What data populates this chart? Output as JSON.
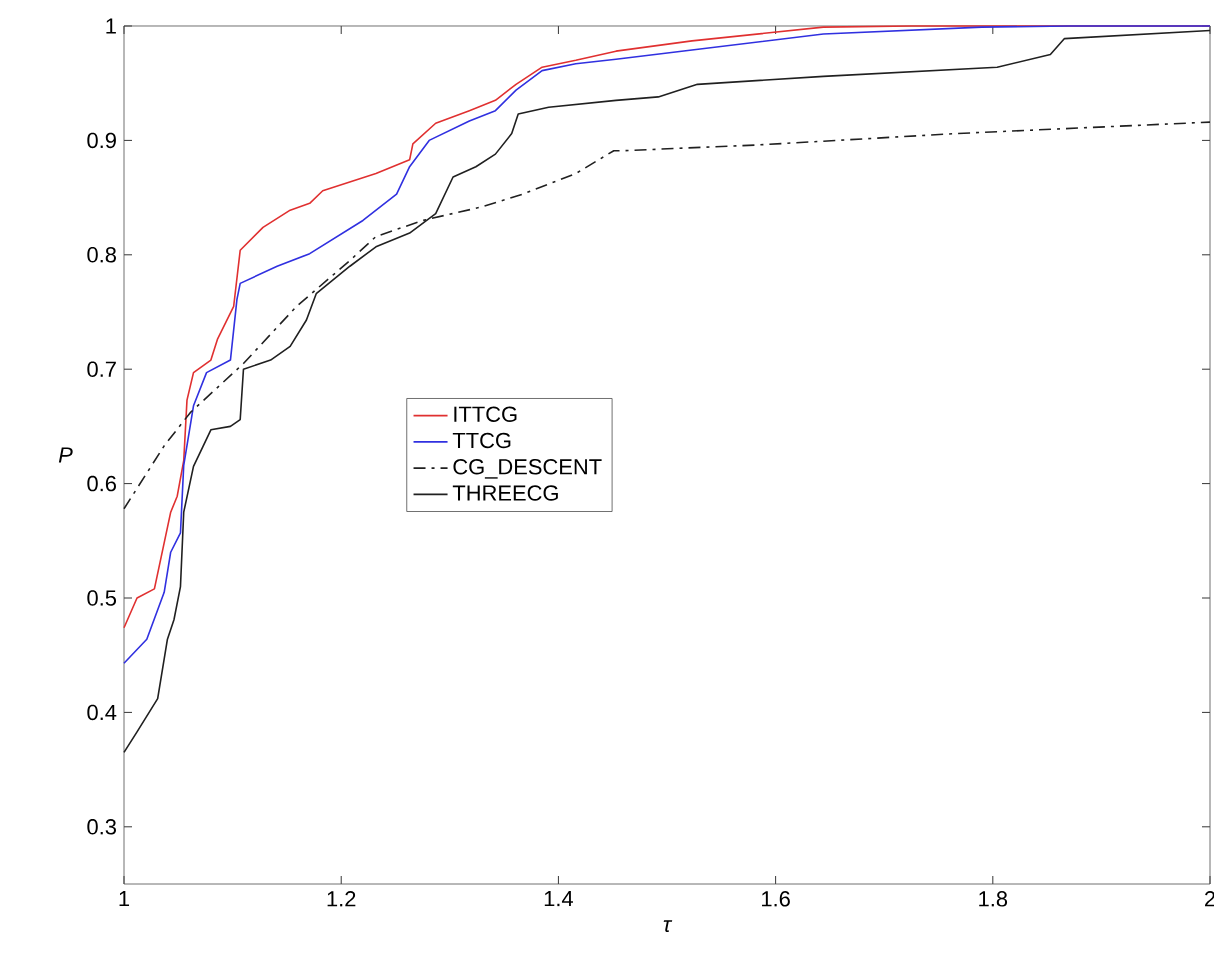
{
  "chart_data": {
    "type": "line",
    "xlabel": "τ",
    "ylabel": "P",
    "xlim": [
      1,
      2
    ],
    "ylim": [
      0.25,
      1
    ],
    "xticks": [
      1,
      1.2,
      1.4,
      1.6,
      1.8,
      2
    ],
    "yticks": [
      0.3,
      0.4,
      0.5,
      0.6,
      0.7,
      0.8,
      0.9,
      1
    ],
    "legend": "left",
    "grid": false,
    "marker": "none",
    "series": [
      {
        "name": "ITTCG",
        "color": "#e03030",
        "line_style": "solid",
        "x": [
          1.0,
          1.012,
          1.028,
          1.043,
          1.049,
          1.055,
          1.058,
          1.064,
          1.08,
          1.086,
          1.101,
          1.107,
          1.128,
          1.153,
          1.171,
          1.183,
          1.232,
          1.263,
          1.266,
          1.287,
          1.318,
          1.342,
          1.361,
          1.385,
          1.416,
          1.453,
          1.523,
          1.644,
          1.725,
          2.0
        ],
        "values": [
          0.474,
          0.5,
          0.508,
          0.575,
          0.589,
          0.62,
          0.673,
          0.697,
          0.708,
          0.726,
          0.755,
          0.804,
          0.824,
          0.839,
          0.845,
          0.856,
          0.871,
          0.883,
          0.897,
          0.915,
          0.926,
          0.935,
          0.949,
          0.964,
          0.97,
          0.978,
          0.987,
          0.999,
          1.0,
          1.0
        ]
      },
      {
        "name": "TTCG",
        "color": "#3030e0",
        "line_style": "solid",
        "x": [
          1.0,
          1.021,
          1.037,
          1.043,
          1.052,
          1.055,
          1.064,
          1.076,
          1.098,
          1.104,
          1.107,
          1.141,
          1.171,
          1.22,
          1.251,
          1.263,
          1.281,
          1.318,
          1.342,
          1.361,
          1.385,
          1.416,
          1.453,
          1.523,
          1.644,
          1.79,
          1.87,
          2.0
        ],
        "values": [
          0.443,
          0.464,
          0.505,
          0.54,
          0.557,
          0.616,
          0.668,
          0.697,
          0.708,
          0.761,
          0.775,
          0.79,
          0.801,
          0.83,
          0.853,
          0.877,
          0.9,
          0.917,
          0.926,
          0.944,
          0.961,
          0.967,
          0.971,
          0.979,
          0.993,
          0.999,
          1.0,
          1.0
        ]
      },
      {
        "name": "CG_DESCENT",
        "color": "#202020",
        "line_style": "dashdot",
        "x": [
          1.0,
          1.037,
          1.061,
          1.11,
          1.159,
          1.208,
          1.232,
          1.275,
          1.33,
          1.367,
          1.416,
          1.451,
          1.46,
          1.583,
          1.767,
          2.0
        ],
        "values": [
          0.578,
          0.633,
          0.662,
          0.705,
          0.755,
          0.795,
          0.816,
          0.83,
          0.842,
          0.853,
          0.871,
          0.891,
          0.891,
          0.896,
          0.906,
          0.916
        ]
      },
      {
        "name": "THREECG",
        "color": "#202020",
        "line_style": "solid",
        "x": [
          1.0,
          1.012,
          1.031,
          1.04,
          1.046,
          1.052,
          1.055,
          1.064,
          1.073,
          1.08,
          1.098,
          1.107,
          1.11,
          1.135,
          1.153,
          1.168,
          1.177,
          1.208,
          1.232,
          1.263,
          1.287,
          1.303,
          1.324,
          1.342,
          1.357,
          1.363,
          1.391,
          1.453,
          1.492,
          1.528,
          1.644,
          1.804,
          1.853,
          1.866,
          2.0
        ],
        "values": [
          0.365,
          0.383,
          0.412,
          0.464,
          0.481,
          0.51,
          0.575,
          0.615,
          0.633,
          0.647,
          0.65,
          0.656,
          0.7,
          0.708,
          0.72,
          0.743,
          0.766,
          0.79,
          0.807,
          0.819,
          0.836,
          0.868,
          0.877,
          0.888,
          0.906,
          0.923,
          0.929,
          0.935,
          0.938,
          0.949,
          0.956,
          0.964,
          0.975,
          0.989,
          0.996
        ]
      }
    ]
  }
}
